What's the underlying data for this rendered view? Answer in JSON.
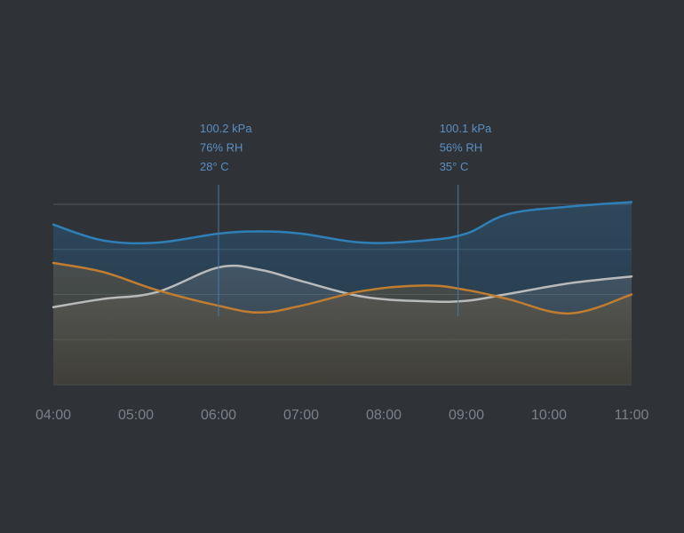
{
  "chart_data": {
    "type": "area",
    "title": "",
    "xlabel": "",
    "ylabel": "",
    "categories": [
      "04:00",
      "05:00",
      "06:00",
      "07:00",
      "08:00",
      "09:00",
      "10:00",
      "11:00"
    ],
    "x": [
      4.0,
      4.6,
      5.25,
      6.0,
      6.5,
      7.0,
      7.75,
      8.5,
      9.0,
      9.5,
      10.25,
      11.0
    ],
    "ylim": [
      0,
      4
    ],
    "grid": true,
    "legend": "none",
    "series": [
      {
        "color": "#2f7fb8",
        "fill_opacity": 0.28,
        "values": [
          3.55,
          3.2,
          3.15,
          3.35,
          3.4,
          3.35,
          3.15,
          3.2,
          3.35,
          3.78,
          3.95,
          4.05
        ]
      },
      {
        "color": "#b9babb",
        "fill_opacity": 0.16,
        "values": [
          1.72,
          1.9,
          2.05,
          2.6,
          2.55,
          2.3,
          1.95,
          1.85,
          1.86,
          2.01,
          2.25,
          2.4
        ]
      },
      {
        "color": "#c07c2f",
        "fill_opacity": 0.2,
        "values": [
          2.7,
          2.5,
          2.1,
          1.75,
          1.6,
          1.75,
          2.08,
          2.2,
          2.1,
          1.9,
          1.58,
          2.0
        ]
      }
    ],
    "annotations": [
      {
        "x": 6.0,
        "lines": [
          "100.2 kPa",
          "76% RH",
          "28° C"
        ]
      },
      {
        "x": 8.9,
        "lines": [
          "100.1 kPa",
          "56% RH",
          "35° C"
        ]
      }
    ]
  },
  "colors": {
    "background": "#2f3338",
    "grid": "#4e555c",
    "annotation_text": "#5a8fc4",
    "annotation_line": "#4a78a6",
    "tick_text": "#7b8188"
  }
}
